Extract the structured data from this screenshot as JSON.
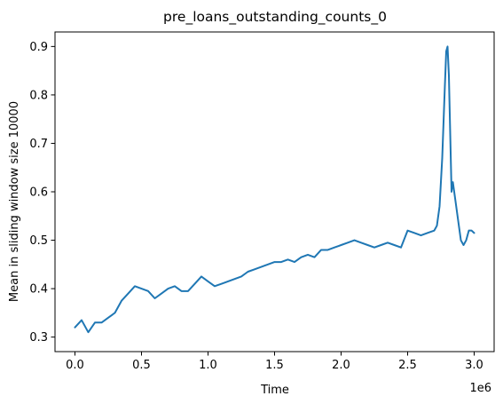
{
  "chart_data": {
    "type": "line",
    "title": "pre_loans_outstanding_counts_0",
    "xlabel": "Time",
    "ylabel": "Mean in sliding window size 10000",
    "x_offset_text": "1e6",
    "xlim": [
      -0.15,
      3.15
    ],
    "ylim": [
      0.27,
      0.93
    ],
    "x_ticks": [
      0.0,
      0.5,
      1.0,
      1.5,
      2.0,
      2.5,
      3.0
    ],
    "x_tick_labels": [
      "0.0",
      "0.5",
      "1.0",
      "1.5",
      "2.0",
      "2.5",
      "3.0"
    ],
    "y_ticks": [
      0.3,
      0.4,
      0.5,
      0.6,
      0.7,
      0.8,
      0.9
    ],
    "y_tick_labels": [
      "0.3",
      "0.4",
      "0.5",
      "0.6",
      "0.7",
      "0.8",
      "0.9"
    ],
    "grid": false,
    "line_color": "#1f77b4",
    "series": [
      {
        "x": [
          0.0,
          0.05,
          0.1,
          0.15,
          0.2,
          0.25,
          0.3,
          0.35,
          0.4,
          0.45,
          0.5,
          0.55,
          0.6,
          0.65,
          0.7,
          0.75,
          0.8,
          0.85,
          0.9,
          0.95,
          1.0,
          1.05,
          1.1,
          1.15,
          1.2,
          1.25,
          1.3,
          1.35,
          1.4,
          1.45,
          1.5,
          1.55,
          1.6,
          1.65,
          1.7,
          1.75,
          1.8,
          1.85,
          1.9,
          1.95,
          2.0,
          2.05,
          2.1,
          2.15,
          2.2,
          2.25,
          2.3,
          2.35,
          2.4,
          2.45,
          2.5,
          2.55,
          2.6,
          2.65,
          2.7,
          2.72,
          2.74,
          2.76,
          2.78,
          2.79,
          2.8,
          2.81,
          2.82,
          2.83,
          2.84,
          2.86,
          2.88,
          2.9,
          2.92,
          2.94,
          2.96,
          2.98,
          3.0
        ],
        "y": [
          0.32,
          0.335,
          0.31,
          0.33,
          0.33,
          0.34,
          0.35,
          0.375,
          0.39,
          0.405,
          0.4,
          0.395,
          0.38,
          0.39,
          0.4,
          0.405,
          0.395,
          0.395,
          0.41,
          0.425,
          0.415,
          0.405,
          0.41,
          0.415,
          0.42,
          0.425,
          0.435,
          0.44,
          0.445,
          0.45,
          0.455,
          0.455,
          0.46,
          0.455,
          0.465,
          0.47,
          0.465,
          0.48,
          0.48,
          0.485,
          0.49,
          0.495,
          0.5,
          0.495,
          0.49,
          0.485,
          0.49,
          0.495,
          0.49,
          0.485,
          0.52,
          0.515,
          0.51,
          0.515,
          0.52,
          0.53,
          0.57,
          0.67,
          0.82,
          0.89,
          0.9,
          0.84,
          0.72,
          0.6,
          0.62,
          0.58,
          0.54,
          0.5,
          0.49,
          0.5,
          0.52,
          0.52,
          0.515
        ]
      }
    ]
  }
}
